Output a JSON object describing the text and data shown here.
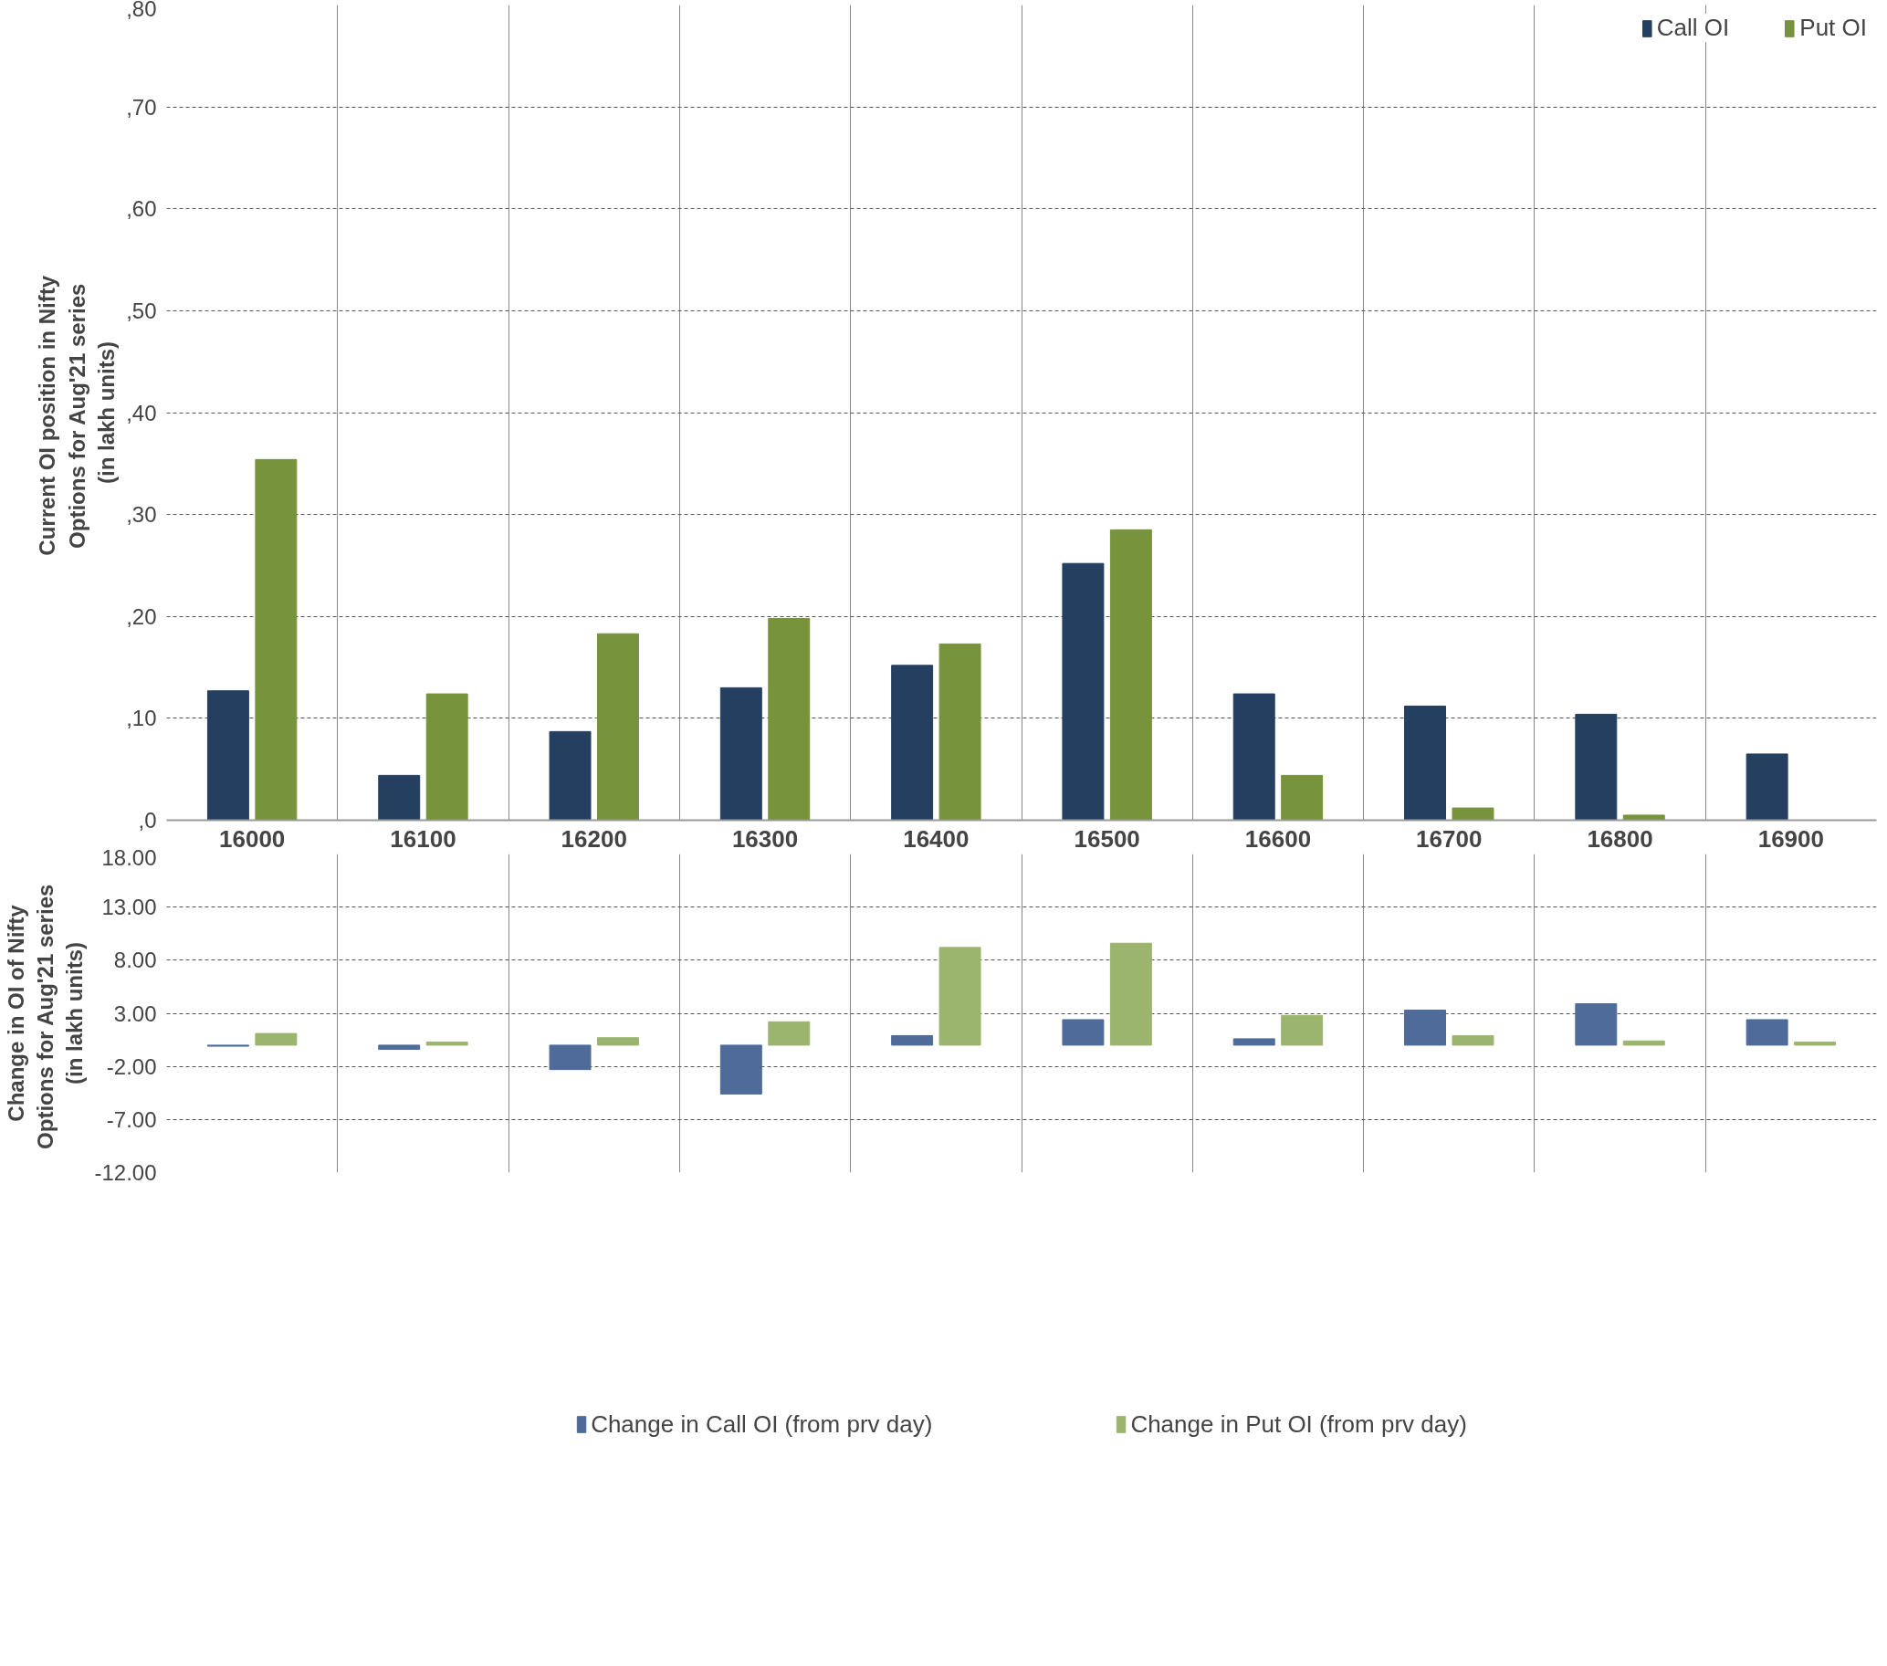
{
  "chart_data": [
    {
      "type": "bar",
      "ylabel": "Current OI position  in Nifty\nOptions for Aug'21  series\n(in lakh units)",
      "categories": [
        "16000",
        "16100",
        "16200",
        "16300",
        "16400",
        "16500",
        "16600",
        "16700",
        "16800",
        "16900"
      ],
      "series": [
        {
          "name": "Call OI",
          "color": "#243f60",
          "values": [
            12.7,
            4.4,
            8.7,
            13.0,
            15.2,
            25.2,
            12.4,
            11.2,
            10.4,
            6.5
          ]
        },
        {
          "name": "Put OI",
          "color": "#77933c",
          "values": [
            35.4,
            12.4,
            18.3,
            19.8,
            17.3,
            28.5,
            4.4,
            1.2,
            0.5,
            0
          ]
        }
      ],
      "ylim": [
        0,
        80
      ],
      "yticks": [
        {
          "value": 0,
          "label": ",0"
        },
        {
          "value": 10,
          "label": ",10"
        },
        {
          "value": 20,
          "label": ",20"
        },
        {
          "value": 30,
          "label": ",30"
        },
        {
          "value": 40,
          "label": ",40"
        },
        {
          "value": 50,
          "label": ",50"
        },
        {
          "value": 60,
          "label": ",60"
        },
        {
          "value": 70,
          "label": ",70"
        },
        {
          "value": 80,
          "label": ",80"
        }
      ],
      "grid": true,
      "legend": "top right"
    },
    {
      "type": "bar",
      "ylabel": "Change in OI of Nifty\nOptions for Aug'21  series\n(in lakh units)",
      "categories": [
        null,
        null,
        null,
        null,
        null,
        null,
        null,
        null,
        null,
        null
      ],
      "series": [
        {
          "name": "Change in Call OI (from prv day)",
          "color": "#4f6b9a",
          "values": [
            -0.1,
            -0.4,
            -2.3,
            -4.6,
            0.9,
            2.4,
            0.6,
            3.3,
            3.9,
            2.4
          ]
        },
        {
          "name": "Change in Put OI (from prv day)",
          "color": "#9bb56e",
          "values": [
            1.1,
            0.3,
            0.7,
            2.2,
            9.2,
            9.6,
            2.8,
            0.9,
            0.4,
            0.3
          ]
        }
      ],
      "ylim": [
        -12,
        18
      ],
      "yticks": [
        {
          "value": -12,
          "label": "-12.00"
        },
        {
          "value": -7,
          "label": "-7.00"
        },
        {
          "value": -2,
          "label": "-2.00"
        },
        {
          "value": 3,
          "label": "3.00"
        },
        {
          "value": 8,
          "label": "8.00"
        },
        {
          "value": 13,
          "label": "13.00"
        },
        {
          "value": 18,
          "label": "18.00"
        }
      ],
      "grid": true,
      "legend": "bottom",
      "tick_labels": "y"
    }
  ]
}
